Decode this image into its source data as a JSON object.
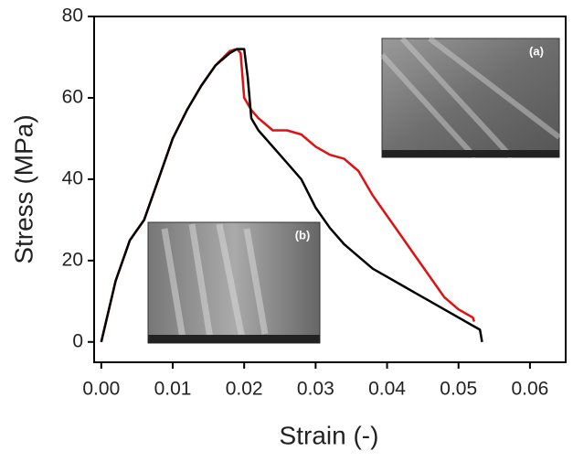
{
  "chart_data": {
    "type": "line",
    "x_label": "Strain (-)",
    "y_label": "Stress (MPa)",
    "xlim": [
      -0.001,
      0.065
    ],
    "ylim": [
      -5,
      80
    ],
    "xticks": [
      {
        "value": 0,
        "label": "0.00"
      },
      {
        "value": 0.01,
        "label": "0.01"
      },
      {
        "value": 0.02,
        "label": "0.02"
      },
      {
        "value": 0.03,
        "label": "0.03"
      },
      {
        "value": 0.04,
        "label": "0.04"
      },
      {
        "value": 0.05,
        "label": "0.05"
      },
      {
        "value": 0.06,
        "label": "0.06"
      }
    ],
    "yticks": [
      0,
      20,
      40,
      60,
      80
    ],
    "annotations": [
      "(a)",
      "(b)"
    ],
    "series": [
      {
        "color": "#e01010",
        "x": [
          0,
          0.002,
          0.004,
          0.006,
          0.008,
          0.01,
          0.012,
          0.014,
          0.016,
          0.018,
          0.019,
          0.0195,
          0.02,
          0.021,
          0.022,
          0.024,
          0.026,
          0.028,
          0.03,
          0.032,
          0.034,
          0.036,
          0.038,
          0.04,
          0.042,
          0.044,
          0.046,
          0.048,
          0.05,
          0.052,
          0.0522
        ],
        "values": [
          0,
          15,
          25,
          30,
          40,
          50,
          57,
          63,
          68,
          71.5,
          72,
          71,
          60,
          57,
          55,
          52,
          52,
          51,
          48,
          46,
          45,
          42,
          36,
          31,
          26,
          21,
          16,
          11,
          8,
          6,
          5
        ]
      },
      {
        "color": "#000000",
        "x": [
          0,
          0.002,
          0.004,
          0.006,
          0.008,
          0.01,
          0.012,
          0.014,
          0.016,
          0.018,
          0.019,
          0.02,
          0.0205,
          0.021,
          0.022,
          0.024,
          0.026,
          0.028,
          0.03,
          0.032,
          0.034,
          0.036,
          0.038,
          0.04,
          0.042,
          0.044,
          0.046,
          0.048,
          0.05,
          0.052,
          0.053,
          0.0533
        ],
        "values": [
          0,
          15,
          25,
          30,
          40,
          50,
          57,
          63,
          68,
          71,
          72,
          72,
          65,
          55,
          52,
          48,
          44,
          40,
          33,
          28,
          24,
          21,
          18,
          16,
          14,
          12,
          10,
          8,
          6,
          4,
          3,
          0
        ]
      }
    ]
  }
}
